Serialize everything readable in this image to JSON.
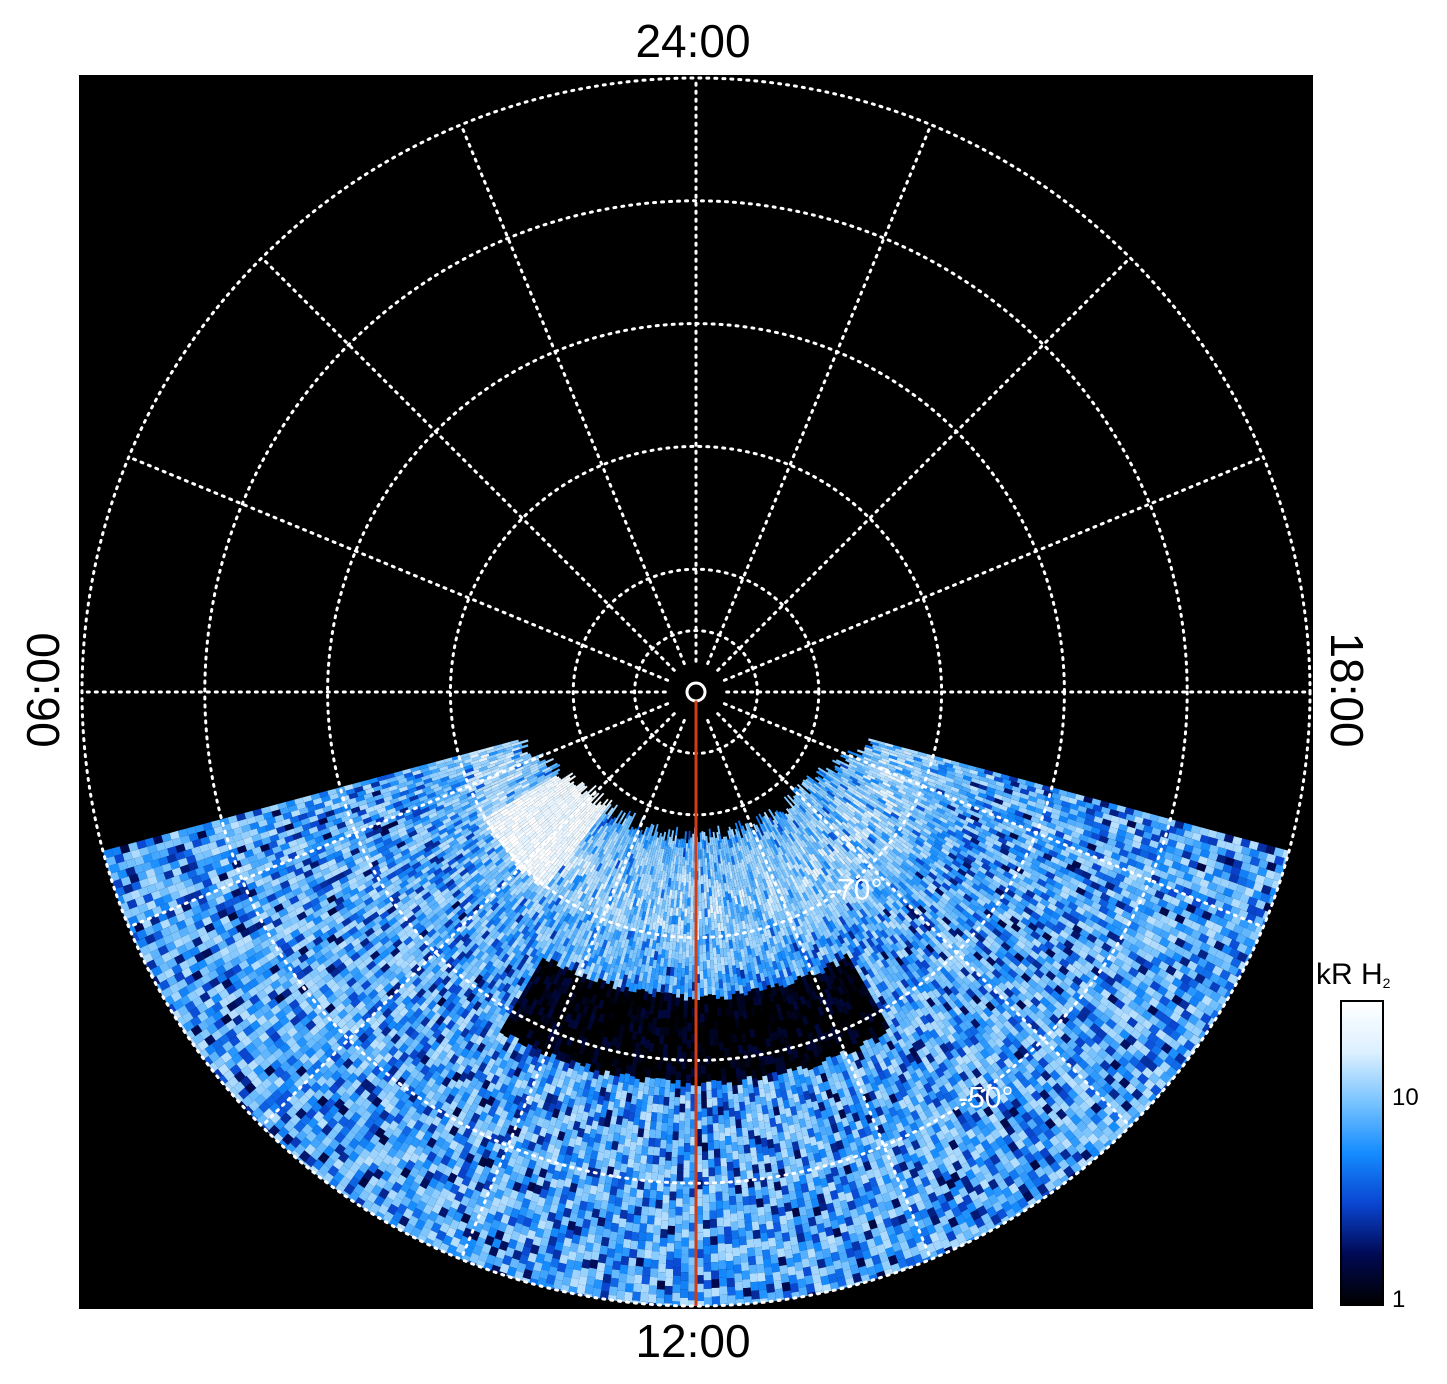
{
  "chart_data": {
    "type": "heatmap",
    "projection": "polar",
    "local_time_labels": {
      "top": "24:00",
      "bottom": "12:00",
      "left": "06:00",
      "right": "18:00"
    },
    "latitude_labels": [
      "-70°",
      "-50°"
    ],
    "latitude_grid_deg": [
      -85,
      -80,
      -70,
      -60,
      -50,
      -40
    ],
    "meridians_every_hours": 1.5,
    "marked_meridian_local_time": "12:00",
    "coverage_local_time_range": [
      "07:00",
      "17:00"
    ],
    "coverage_latitude_range_deg": [
      -90,
      -40
    ],
    "colorbar": {
      "title": "kR H",
      "title_subscript": "2",
      "scale": "log",
      "range": [
        1,
        25
      ],
      "tick_labels": [
        "1",
        "10"
      ],
      "colors": [
        "#000000",
        "#000a55",
        "#0a46d2",
        "#148cff",
        "#78c3ff",
        "#dcf0ff",
        "#ffffff"
      ]
    },
    "features": [
      {
        "description": "bright auroral patch",
        "local_time_range": [
          "08:00",
          "09:30"
        ],
        "latitude_deg": -75,
        "intensity_kR": 25
      },
      {
        "description": "main oval arc",
        "local_time_range": [
          "07:00",
          "17:00"
        ],
        "latitude_deg": -73,
        "intensity_kR": 12
      },
      {
        "description": "dark band",
        "local_time_range": [
          "10:00",
          "14:00"
        ],
        "latitude_deg": -62,
        "intensity_kR": 1
      },
      {
        "description": "noisy background",
        "latitude_range_deg": [
          -58,
          -40
        ],
        "intensity_kR": 6
      }
    ],
    "grid": true,
    "legend": "right"
  },
  "colors": {
    "grid": "#ffffff",
    "meridian_marker": "#d23c14",
    "background": "#000000"
  }
}
